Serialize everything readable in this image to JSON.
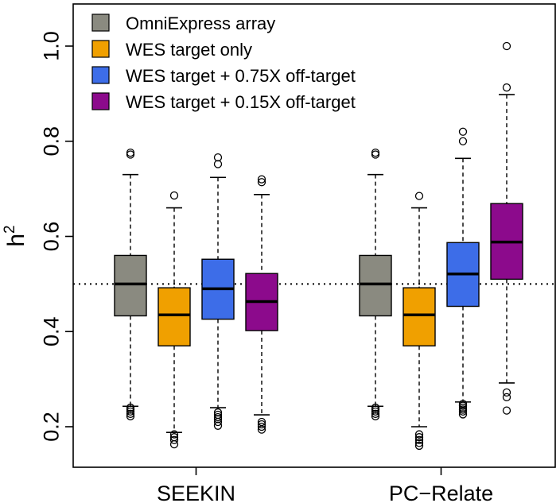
{
  "chart_data": {
    "type": "box",
    "ylabel": "h",
    "ylabel_superscript": "2",
    "ylim": [
      0.15,
      1.05
    ],
    "yticks": [
      {
        "value": 0.2,
        "label": "0.2"
      },
      {
        "value": 0.4,
        "label": "0.4"
      },
      {
        "value": 0.6,
        "label": "0.6"
      },
      {
        "value": 0.8,
        "label": "0.8"
      },
      {
        "value": 1.0,
        "label": "1.0"
      }
    ],
    "reference_line": 0.5,
    "legend_position": "top-left",
    "series": [
      {
        "name": "OmniExpress array",
        "color": "#8a8a80"
      },
      {
        "name": "WES target only",
        "color": "#f0a000"
      },
      {
        "name": "WES target + 0.75X off-target",
        "color": "#3d6de8"
      },
      {
        "name": "WES target + 0.15X off-target",
        "color": "#8c0a8c"
      }
    ],
    "groups": [
      {
        "label": "SEEKIN",
        "boxes": [
          {
            "min": 0.243,
            "q1": 0.433,
            "median": 0.5,
            "q3": 0.56,
            "max": 0.73,
            "outliers": [
              0.776,
              0.772,
              0.24,
              0.236,
              0.232,
              0.227,
              0.222
            ]
          },
          {
            "min": 0.188,
            "q1": 0.37,
            "median": 0.435,
            "q3": 0.492,
            "max": 0.66,
            "outliers": [
              0.686,
              0.184,
              0.178,
              0.172,
              0.163
            ]
          },
          {
            "min": 0.24,
            "q1": 0.426,
            "median": 0.49,
            "q3": 0.552,
            "max": 0.724,
            "outliers": [
              0.766,
              0.752,
              0.23,
              0.225,
              0.22,
              0.216,
              0.21,
              0.202
            ]
          },
          {
            "min": 0.225,
            "q1": 0.402,
            "median": 0.463,
            "q3": 0.522,
            "max": 0.688,
            "outliers": [
              0.72,
              0.714,
              0.21,
              0.205,
              0.2,
              0.194
            ]
          }
        ]
      },
      {
        "label": "PC−Relate",
        "boxes": [
          {
            "min": 0.243,
            "q1": 0.433,
            "median": 0.5,
            "q3": 0.56,
            "max": 0.73,
            "outliers": [
              0.776,
              0.772,
              0.24,
              0.236,
              0.232,
              0.227,
              0.222
            ]
          },
          {
            "min": 0.2,
            "q1": 0.37,
            "median": 0.435,
            "q3": 0.492,
            "max": 0.66,
            "outliers": [
              0.685,
              0.184,
              0.178,
              0.172,
              0.166,
              0.16
            ]
          },
          {
            "min": 0.252,
            "q1": 0.453,
            "median": 0.521,
            "q3": 0.587,
            "max": 0.764,
            "outliers": [
              0.82,
              0.8,
              0.248,
              0.244,
              0.24,
              0.236,
              0.232,
              0.226
            ]
          },
          {
            "min": 0.292,
            "q1": 0.51,
            "median": 0.588,
            "q3": 0.669,
            "max": 0.898,
            "outliers": [
              1.0,
              0.913,
              0.272,
              0.262,
              0.234
            ]
          }
        ]
      }
    ]
  }
}
